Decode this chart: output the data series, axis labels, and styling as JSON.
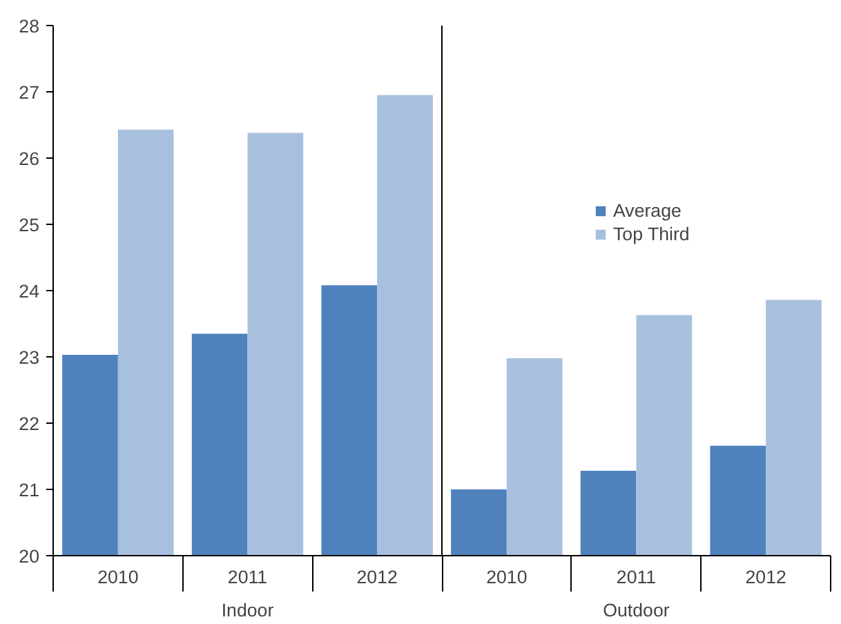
{
  "chart_data": {
    "type": "bar",
    "categories": [
      "2010",
      "2011",
      "2012",
      "2010",
      "2011",
      "2012"
    ],
    "series": [
      {
        "name": "Average",
        "color": "#4f81bd",
        "values": [
          23.03,
          23.35,
          24.08,
          21.0,
          21.28,
          21.66
        ]
      },
      {
        "name": "Top Third",
        "color": "#a7c0de",
        "values": [
          26.43,
          26.38,
          26.95,
          22.98,
          23.63,
          23.86
        ]
      }
    ],
    "annotations": [
      "Indoor",
      "Outdoor"
    ],
    "ylim": [
      20,
      28
    ],
    "yticks": [
      20,
      21,
      22,
      23,
      24,
      25,
      26,
      27,
      28
    ],
    "grid": false,
    "legend": "right"
  }
}
